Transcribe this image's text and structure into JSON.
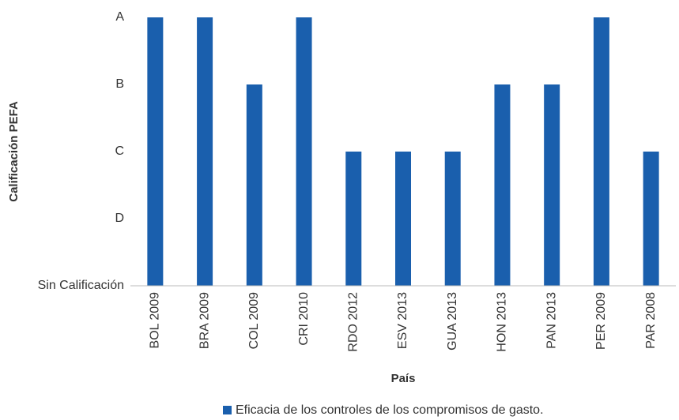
{
  "chart_data": {
    "type": "bar",
    "x_label": "País",
    "y_label": "Calificación PEFA",
    "categories": [
      "BOL 2009",
      "BRA 2009",
      "COL 2009",
      "CRI 2010",
      "RDO 2012",
      "ESV 2013",
      "GUA 2013",
      "HON 2013",
      "PAN 2013",
      "PER 2009",
      "PAR 2008"
    ],
    "series": [
      {
        "name": "Eficacia de los controles de los compromisos de gasto.",
        "color": "#1a5fad",
        "values": [
          4,
          4,
          3,
          4,
          2,
          2,
          2,
          3,
          3,
          4,
          2
        ]
      }
    ],
    "ylim": [
      0,
      4
    ],
    "yticks": [
      {
        "value": 0,
        "label": "Sin Calificación"
      },
      {
        "value": 1,
        "label": "D"
      },
      {
        "value": 2,
        "label": "C"
      },
      {
        "value": 3,
        "label": "B"
      },
      {
        "value": 4,
        "label": "A"
      }
    ],
    "grid": false,
    "legend": "bottom"
  }
}
